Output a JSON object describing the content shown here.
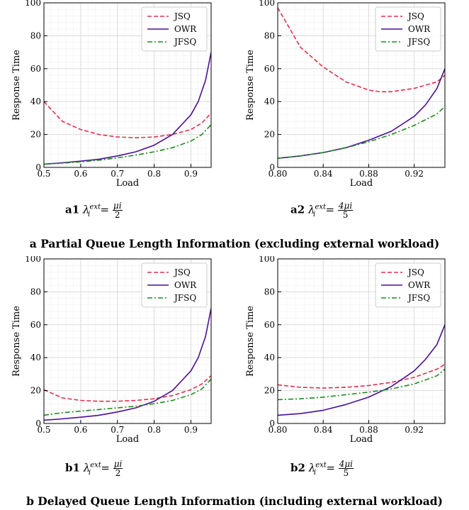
{
  "colors": {
    "JSQ": "#e0304e",
    "OWR": "#4b0f96",
    "JFSQ": "#1f8a1f",
    "grid": "#d8d8d8",
    "minorgrid": "#efefef"
  },
  "sections": {
    "a_title": "a Partial Queue Length Information (excluding external workload)",
    "b_title": "b Delayed Queue Length Information (including external workload)"
  },
  "captions": {
    "a1": {
      "label": "a1",
      "formula": "λ",
      "sup": "ext",
      "sub": "i",
      "eq": "=",
      "num": "μi",
      "den": "2"
    },
    "a2": {
      "label": "a2",
      "formula": "λ",
      "sup": "ext",
      "sub": "i",
      "eq": "=",
      "num": "4μi",
      "den": "5"
    },
    "b1": {
      "label": "b1",
      "formula": "λ",
      "sup": "ext",
      "sub": "i",
      "eq": "=",
      "num": "μi",
      "den": "2"
    },
    "b2": {
      "label": "b2",
      "formula": "λ",
      "sup": "ext",
      "sub": "i",
      "eq": "=",
      "num": "4μi",
      "den": "5"
    }
  },
  "chart_data": [
    {
      "id": "a1",
      "type": "line",
      "xlabel": "Load",
      "ylabel": "Response Time",
      "xlim": [
        0.5,
        0.955
      ],
      "ylim": [
        0,
        100
      ],
      "xticks": [
        "0.5",
        "0.6",
        "0.7",
        "0.8",
        "0.9"
      ],
      "xtick_values": [
        0.5,
        0.6,
        0.7,
        0.8,
        0.9
      ],
      "yticks": [
        "0",
        "20",
        "40",
        "60",
        "80",
        "100"
      ],
      "ytick_values": [
        0,
        20,
        40,
        60,
        80,
        100
      ],
      "grid": true,
      "legend": "top-right",
      "series": [
        {
          "name": "JSQ",
          "style": "dashed",
          "x": [
            0.5,
            0.55,
            0.6,
            0.65,
            0.7,
            0.75,
            0.8,
            0.85,
            0.9,
            0.93,
            0.955
          ],
          "y": [
            40,
            28,
            23,
            20,
            18.5,
            18,
            18.5,
            20,
            23,
            27,
            33
          ]
        },
        {
          "name": "OWR",
          "style": "solid",
          "x": [
            0.5,
            0.55,
            0.6,
            0.65,
            0.7,
            0.75,
            0.8,
            0.85,
            0.9,
            0.92,
            0.94,
            0.955
          ],
          "y": [
            2,
            2.8,
            3.8,
            5,
            7,
            9.5,
            13.5,
            20,
            32,
            40,
            53,
            70
          ]
        },
        {
          "name": "JFSQ",
          "style": "dashdot",
          "x": [
            0.5,
            0.55,
            0.6,
            0.65,
            0.7,
            0.75,
            0.8,
            0.85,
            0.9,
            0.93,
            0.955
          ],
          "y": [
            2,
            2.6,
            3.4,
            4.4,
            5.8,
            7.5,
            9.5,
            12,
            16,
            20,
            26
          ]
        }
      ]
    },
    {
      "id": "a2",
      "type": "line",
      "xlabel": "Load",
      "ylabel": "Response Time",
      "xlim": [
        0.8,
        0.947
      ],
      "ylim": [
        0,
        100
      ],
      "xticks": [
        "0.80",
        "0.84",
        "0.88",
        "0.92"
      ],
      "xtick_values": [
        0.8,
        0.84,
        0.88,
        0.92
      ],
      "yticks": [
        "0",
        "20",
        "40",
        "60",
        "80",
        "100"
      ],
      "ytick_values": [
        0,
        20,
        40,
        60,
        80,
        100
      ],
      "grid": true,
      "legend": "top-right",
      "series": [
        {
          "name": "JSQ",
          "style": "dashed",
          "x": [
            0.8,
            0.81,
            0.82,
            0.84,
            0.86,
            0.88,
            0.89,
            0.9,
            0.92,
            0.94,
            0.947
          ],
          "y": [
            97,
            85,
            73,
            61,
            52,
            47,
            46,
            46,
            48,
            52,
            56
          ]
        },
        {
          "name": "OWR",
          "style": "solid",
          "x": [
            0.8,
            0.82,
            0.84,
            0.86,
            0.88,
            0.9,
            0.92,
            0.93,
            0.94,
            0.947
          ],
          "y": [
            5.5,
            7,
            9,
            12,
            16.5,
            22,
            31,
            38,
            48,
            60
          ]
        },
        {
          "name": "JFSQ",
          "style": "dashdot",
          "x": [
            0.8,
            0.82,
            0.84,
            0.86,
            0.88,
            0.9,
            0.92,
            0.94,
            0.947
          ],
          "y": [
            5.5,
            7,
            9,
            12,
            15.5,
            20,
            25.5,
            32.5,
            37
          ]
        }
      ]
    },
    {
      "id": "b1",
      "type": "line",
      "xlabel": "Load",
      "ylabel": "Response Time",
      "xlim": [
        0.5,
        0.955
      ],
      "ylim": [
        0,
        100
      ],
      "xticks": [
        "0.5",
        "0.6",
        "0.7",
        "0.8",
        "0.9"
      ],
      "xtick_values": [
        0.5,
        0.6,
        0.7,
        0.8,
        0.9
      ],
      "yticks": [
        "0",
        "20",
        "40",
        "60",
        "80",
        "100"
      ],
      "ytick_values": [
        0,
        20,
        40,
        60,
        80,
        100
      ],
      "grid": true,
      "legend": "top-right",
      "series": [
        {
          "name": "JSQ",
          "style": "dashed",
          "x": [
            0.5,
            0.55,
            0.6,
            0.65,
            0.7,
            0.75,
            0.8,
            0.85,
            0.9,
            0.93,
            0.955
          ],
          "y": [
            20.5,
            15.5,
            14,
            13.5,
            13.5,
            14,
            15,
            17,
            20.5,
            24,
            29
          ]
        },
        {
          "name": "OWR",
          "style": "solid",
          "x": [
            0.5,
            0.55,
            0.6,
            0.65,
            0.7,
            0.75,
            0.8,
            0.85,
            0.9,
            0.92,
            0.94,
            0.955
          ],
          "y": [
            2,
            2.8,
            3.8,
            5,
            7,
            9.5,
            13.5,
            20,
            32,
            40,
            53,
            70
          ]
        },
        {
          "name": "JFSQ",
          "style": "dashdot",
          "x": [
            0.5,
            0.55,
            0.6,
            0.65,
            0.7,
            0.75,
            0.8,
            0.85,
            0.9,
            0.93,
            0.955
          ],
          "y": [
            5,
            6.5,
            7.5,
            8.5,
            9.5,
            10.5,
            12,
            14,
            17.5,
            21,
            27
          ]
        }
      ]
    },
    {
      "id": "b2",
      "type": "line",
      "xlabel": "Load",
      "ylabel": "Response Time",
      "xlim": [
        0.8,
        0.947
      ],
      "ylim": [
        0,
        100
      ],
      "xticks": [
        "0.80",
        "0.84",
        "0.88",
        "0.92"
      ],
      "xtick_values": [
        0.8,
        0.84,
        0.88,
        0.92
      ],
      "yticks": [
        "0",
        "20",
        "40",
        "60",
        "80",
        "100"
      ],
      "ytick_values": [
        0,
        20,
        40,
        60,
        80,
        100
      ],
      "grid": true,
      "legend": "top-right",
      "series": [
        {
          "name": "JSQ",
          "style": "dashed",
          "x": [
            0.8,
            0.82,
            0.84,
            0.86,
            0.88,
            0.9,
            0.92,
            0.94,
            0.947
          ],
          "y": [
            23.5,
            22,
            21.5,
            22,
            23,
            25,
            28,
            33,
            36
          ]
        },
        {
          "name": "OWR",
          "style": "solid",
          "x": [
            0.8,
            0.82,
            0.84,
            0.86,
            0.88,
            0.9,
            0.92,
            0.93,
            0.94,
            0.947
          ],
          "y": [
            5,
            6,
            8,
            11.5,
            16,
            22.5,
            32,
            39,
            48,
            60
          ]
        },
        {
          "name": "JFSQ",
          "style": "dashdot",
          "x": [
            0.8,
            0.82,
            0.84,
            0.86,
            0.88,
            0.9,
            0.92,
            0.94,
            0.947
          ],
          "y": [
            14.5,
            15,
            16,
            17.5,
            19,
            21,
            24,
            29,
            33
          ]
        }
      ]
    }
  ]
}
